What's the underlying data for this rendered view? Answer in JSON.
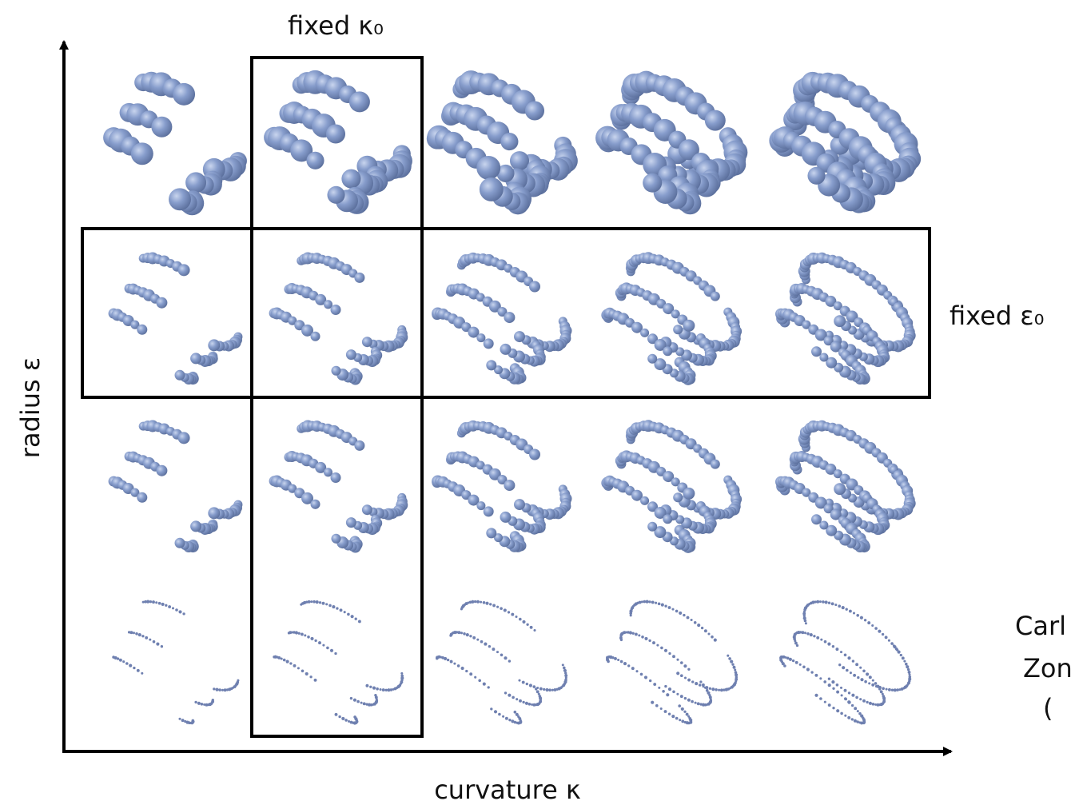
{
  "labels": {
    "fixed_kappa": "fixed κ₀",
    "fixed_epsilon": "fixed ε₀",
    "y_axis": "radius ε",
    "x_axis": "curvature κ"
  },
  "side_note": [
    "Carl",
    "Zon",
    "("
  ]
}
